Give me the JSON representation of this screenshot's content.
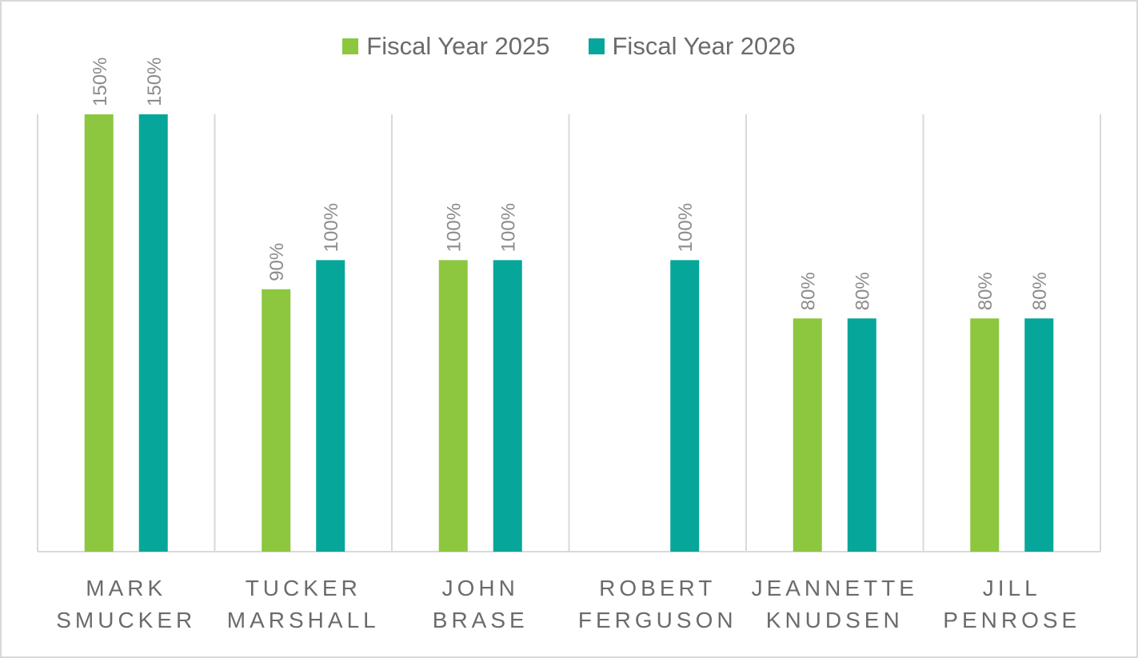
{
  "chart_data": {
    "type": "bar",
    "categories": [
      [
        "MARK",
        "SMUCKER"
      ],
      [
        "TUCKER",
        "MARSHALL"
      ],
      [
        "JOHN",
        "BRASE"
      ],
      [
        "ROBERT",
        "FERGUSON"
      ],
      [
        "JEANNETTE",
        "KNUDSEN"
      ],
      [
        "JILL",
        "PENROSE"
      ]
    ],
    "series": [
      {
        "name": "Fiscal Year 2025",
        "color": "#8dc63f",
        "values": [
          150,
          90,
          100,
          null,
          80,
          80
        ],
        "labels": [
          "150%",
          "90%",
          "100%",
          "",
          "80%",
          "80%"
        ]
      },
      {
        "name": "Fiscal Year 2026",
        "color": "#07a69a",
        "values": [
          150,
          100,
          100,
          100,
          80,
          80
        ],
        "labels": [
          "150%",
          "100%",
          "100%",
          "100%",
          "80%",
          "80%"
        ]
      }
    ],
    "ylim": [
      0,
      150
    ],
    "grid": "vertical separators",
    "legend_position": "top-center"
  }
}
